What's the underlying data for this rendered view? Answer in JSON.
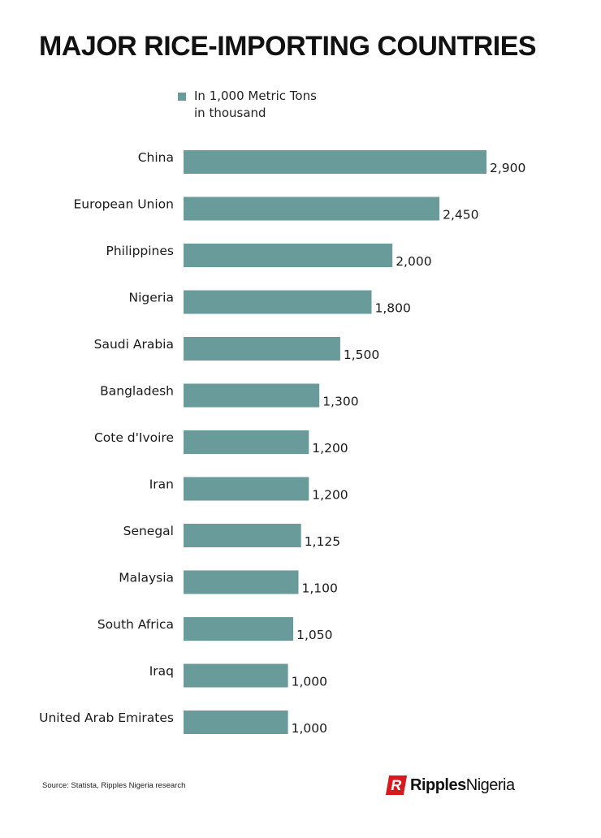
{
  "chart_data": {
    "type": "bar",
    "orientation": "horizontal",
    "title": "MAJOR RICE-IMPORTING COUNTRIES",
    "legend": {
      "position": "top",
      "entries": [
        {
          "line1": "In 1,000 Metric Tons",
          "line2": "in thousand",
          "color": "#689b99"
        }
      ]
    },
    "categories": [
      "China",
      "European Union",
      "Philippines",
      "Nigeria",
      "Saudi Arabia",
      "Bangladesh",
      "Cote d'Ivoire",
      "Iran",
      "Senegal",
      "Malaysia",
      "South Africa",
      "Iraq",
      "United Arab Emirates"
    ],
    "values": [
      2900,
      2450,
      2000,
      1800,
      1500,
      1300,
      1200,
      1200,
      1125,
      1100,
      1050,
      1000,
      1000
    ],
    "value_labels": [
      "2,900",
      "2,450",
      "2,000",
      "1,800",
      "1,500",
      "1,300",
      "1,200",
      "1,200",
      "1,125",
      "1,100",
      "1,050",
      "1,000",
      "1,000"
    ],
    "bar_color": "#689b99",
    "grid": false
  },
  "source": "Source: Statista, Ripples Nigeria research",
  "logo": {
    "mark": "R",
    "text_bold": "Ripples",
    "text_regular": "Nigeria",
    "mark_color": "#d71920"
  }
}
